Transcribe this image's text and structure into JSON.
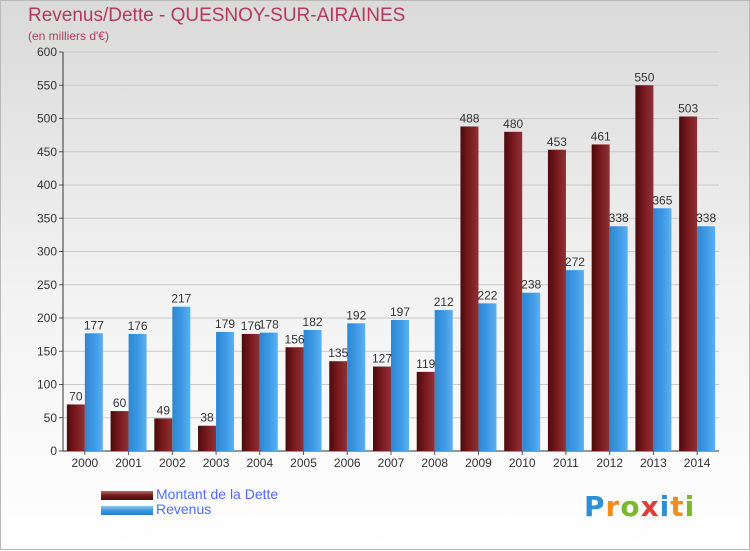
{
  "title": "Revenus/Dette - QUESNOY-SUR-AIRAINES",
  "subtitle": "(en milliers d'€)",
  "colors": {
    "dette": "#7a1b1e",
    "revenus": "#3f9be6",
    "title": "#b43a5c",
    "legend_text": "#4f6bff"
  },
  "chart_data": {
    "type": "bar",
    "categories": [
      "2000",
      "2001",
      "2002",
      "2003",
      "2004",
      "2005",
      "2006",
      "2007",
      "2008",
      "2009",
      "2010",
      "2011",
      "2012",
      "2013",
      "2014"
    ],
    "series": [
      {
        "name": "Montant de la Dette",
        "values": [
          70,
          60,
          49,
          38,
          176,
          156,
          135,
          127,
          119,
          488,
          480,
          453,
          461,
          550,
          503
        ]
      },
      {
        "name": "Revenus",
        "values": [
          177,
          176,
          217,
          179,
          178,
          182,
          192,
          197,
          212,
          222,
          238,
          272,
          338,
          365,
          338
        ]
      }
    ],
    "ylim": [
      0,
      600
    ],
    "yticks": [
      0,
      50,
      100,
      150,
      200,
      250,
      300,
      350,
      400,
      450,
      500,
      550,
      600
    ],
    "grid": true,
    "legend_position": "bottom-left"
  },
  "legend": [
    {
      "label": "Montant de la Dette"
    },
    {
      "label": "Revenus"
    }
  ],
  "logo": {
    "letters": [
      "P",
      "r",
      "o",
      "x",
      "i",
      "t",
      "i"
    ]
  }
}
